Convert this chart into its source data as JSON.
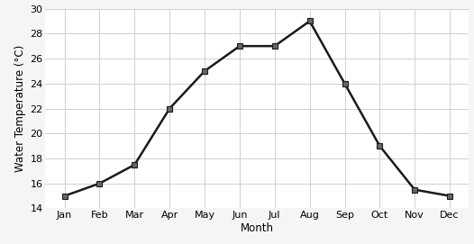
{
  "months": [
    "Jan",
    "Feb",
    "Mar",
    "Apr",
    "May",
    "Jun",
    "Jul",
    "Aug",
    "Sep",
    "Oct",
    "Nov",
    "Dec"
  ],
  "temperatures": [
    15,
    16,
    17.5,
    22,
    25,
    27,
    27,
    29,
    24,
    19,
    15.5,
    15
  ],
  "xlabel": "Month",
  "ylabel": "Water Temperature (°C)",
  "ylim": [
    14,
    30
  ],
  "yticks": [
    14,
    16,
    18,
    20,
    22,
    24,
    26,
    28,
    30
  ],
  "line_color": "#1a1a1a",
  "marker": "s",
  "marker_size": 4,
  "marker_facecolor": "#666666",
  "grid_color": "#d0d0d0",
  "background_color": "#ffffff",
  "fig_background": "#f5f5f5",
  "ylabel_fontsize": 8.5,
  "xlabel_fontsize": 8.5,
  "tick_fontsize": 8
}
